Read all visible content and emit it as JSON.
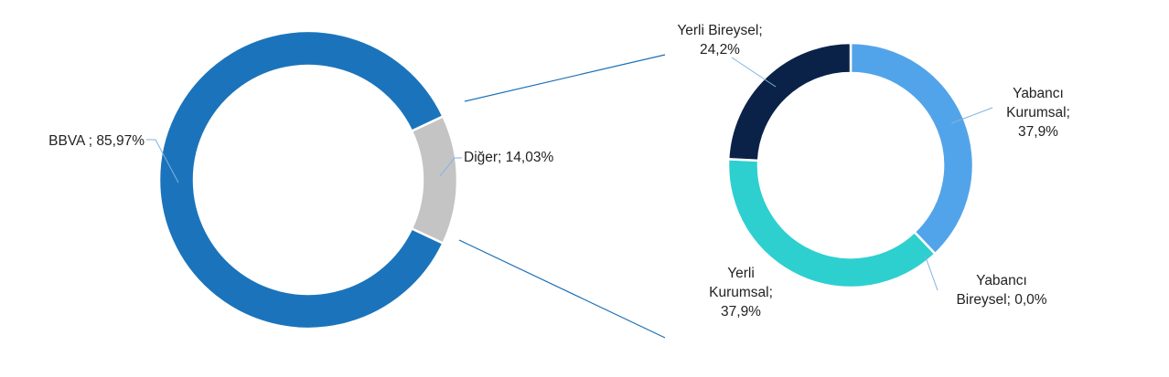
{
  "chart_data": [
    {
      "type": "donut",
      "values": [
        85.97,
        14.03
      ],
      "value_labels": [
        "BBVA ; 85,97%",
        "Diğer; 14,03%"
      ],
      "colors": [
        "#1b74bb",
        "#c4c4c4"
      ]
    },
    {
      "type": "donut",
      "values": [
        37.9,
        0,
        37.9,
        24.2
      ],
      "value_labels": [
        [
          "Yabancı",
          "Kurumsal;",
          "37,9%"
        ],
        [
          "Yabancı",
          "Bireysel; 0,0%"
        ],
        [
          "Yerli",
          "Kurumsal;",
          "37,9%"
        ],
        [
          "Yerli Bireysel;",
          "24,2%"
        ]
      ],
      "colors": [
        "#52a4ea",
        "#bdd7ee",
        "#2ecfcf",
        "#0b2248"
      ]
    }
  ]
}
